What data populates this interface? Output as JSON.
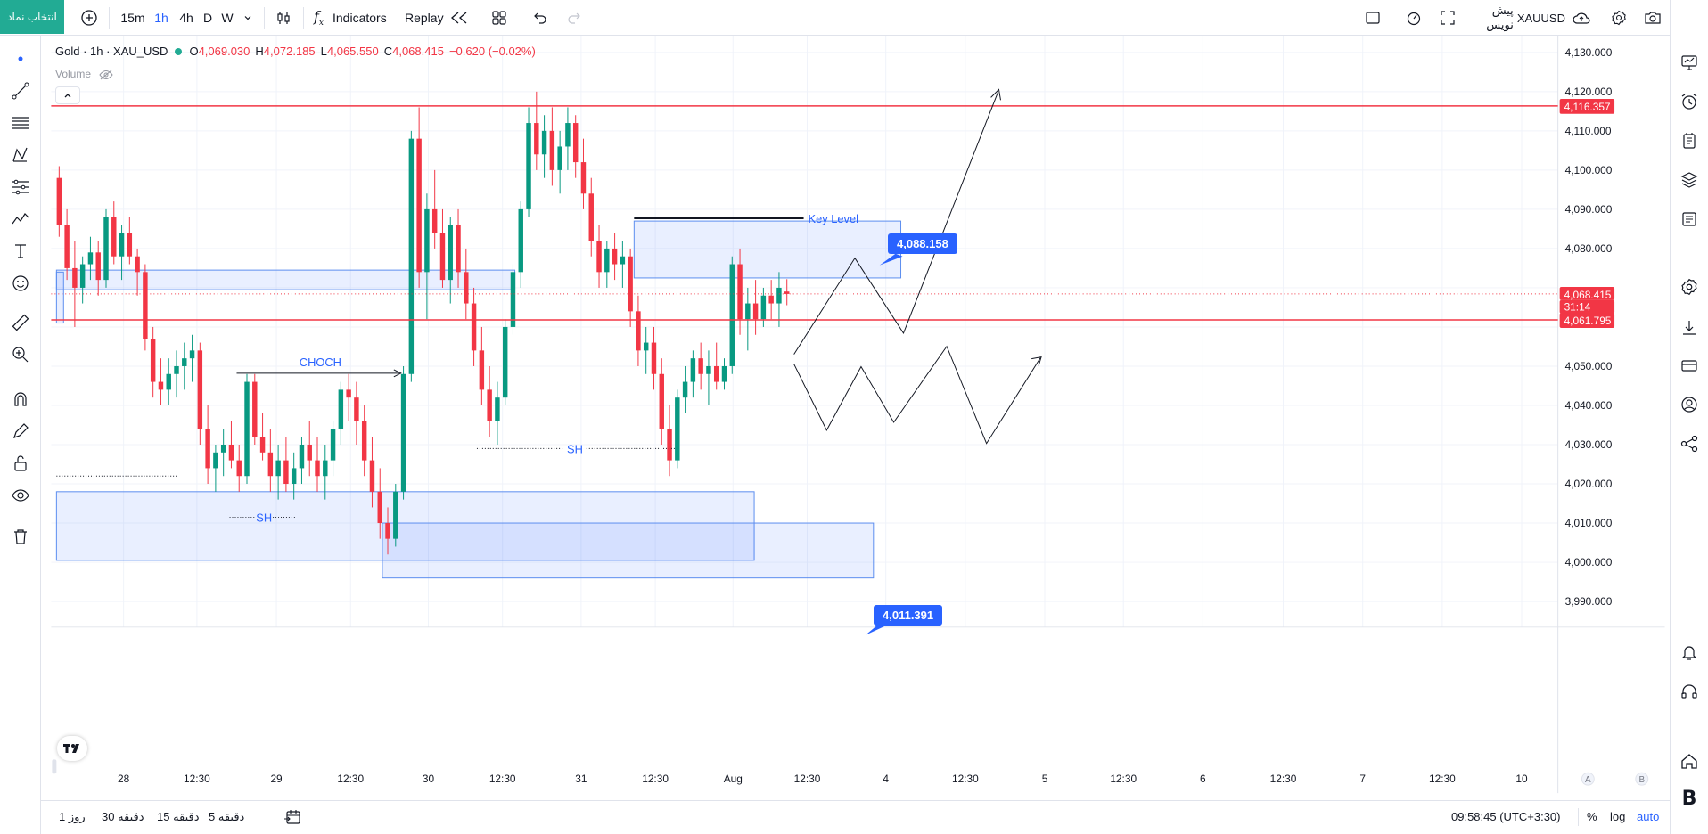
{
  "topbar": {
    "symbol_search": "انتخاب نماد",
    "intervals": [
      "15m",
      "1h",
      "4h",
      "D",
      "W"
    ],
    "active_interval": "1h",
    "indicators_label": "Indicators",
    "replay_label": "Replay",
    "symbol_name": "XAUUSD",
    "publish_label": "پیش نویس"
  },
  "legend": {
    "title": "Gold · 1h · XAU_USD",
    "open_label": "O",
    "open": "4,069.030",
    "high_label": "H",
    "high": "4,072.185",
    "low_label": "L",
    "low": "4,065.550",
    "close_label": "C",
    "close": "4,068.415",
    "change": "−0.620 (−0.02%)",
    "volume_label": "Volume"
  },
  "price_axis": {
    "ticks": [
      "4,130.000",
      "4,120.000",
      "4,110.000",
      "4,100.000",
      "4,090.000",
      "4,080.000",
      "4,070.000",
      "4,060.000",
      "4,050.000",
      "4,040.000",
      "4,030.000",
      "4,020.000",
      "4,010.000",
      "4,000.000",
      "3,990.000"
    ],
    "tag_resistance": "4,116.357",
    "tag_current": "4,068.415",
    "tag_countdown": "31:14",
    "tag_support": "4,061.795"
  },
  "time_axis": {
    "ticks": [
      "28",
      "12:30",
      "29",
      "12:30",
      "30",
      "12:30",
      "31",
      "12:30",
      "Aug",
      "12:30",
      "4",
      "12:30",
      "5",
      "12:30",
      "6",
      "12:30",
      "7",
      "12:30",
      "10"
    ]
  },
  "drawings": {
    "choch_label": "CHOCH",
    "sh_label_1": "SH",
    "sh_label_2": "SH",
    "key_level_label": "Key Level",
    "callout_upper": "4,088.158",
    "callout_lower": "4,011.391"
  },
  "bottombar": {
    "ranges": [
      "1 روز",
      "30 دقیقه",
      "15 دقیقه",
      "5 دقیقه"
    ],
    "clock": "09:58:45 (UTC+3:30)",
    "percent_label": "%",
    "log_label": "log",
    "auto_label": "auto"
  },
  "chart_data": {
    "type": "candlestick",
    "y_range": [
      3985,
      4135
    ],
    "resistance_level": 4116.357,
    "support_level": 4061.795,
    "current_price": 4068.415,
    "candles_ohlc": [
      [
        4098,
        4101,
        4083,
        4086
      ],
      [
        4086,
        4090,
        4072,
        4075
      ],
      [
        4075,
        4082,
        4060,
        4070
      ],
      [
        4070,
        4078,
        4066,
        4076
      ],
      [
        4076,
        4083,
        4072,
        4079
      ],
      [
        4079,
        4082,
        4068,
        4072
      ],
      [
        4072,
        4090,
        4070,
        4088
      ],
      [
        4088,
        4092,
        4076,
        4078
      ],
      [
        4078,
        4086,
        4072,
        4084
      ],
      [
        4084,
        4088,
        4076,
        4078
      ],
      [
        4078,
        4080,
        4068,
        4074
      ],
      [
        4074,
        4076,
        4054,
        4057
      ],
      [
        4057,
        4060,
        4042,
        4046
      ],
      [
        4046,
        4052,
        4040,
        4044
      ],
      [
        4044,
        4052,
        4040,
        4048
      ],
      [
        4048,
        4054,
        4042,
        4050
      ],
      [
        4050,
        4056,
        4044,
        4052
      ],
      [
        4052,
        4058,
        4046,
        4054
      ],
      [
        4054,
        4056,
        4030,
        4034
      ],
      [
        4034,
        4040,
        4020,
        4024
      ],
      [
        4024,
        4030,
        4018,
        4028
      ],
      [
        4028,
        4034,
        4022,
        4030
      ],
      [
        4030,
        4036,
        4024,
        4026
      ],
      [
        4026,
        4030,
        4018,
        4022
      ],
      [
        4022,
        4048,
        4020,
        4046
      ],
      [
        4046,
        4048,
        4030,
        4032
      ],
      [
        4032,
        4038,
        4026,
        4028
      ],
      [
        4028,
        4034,
        4018,
        4022
      ],
      [
        4022,
        4030,
        4016,
        4026
      ],
      [
        4026,
        4032,
        4018,
        4020
      ],
      [
        4020,
        4028,
        4016,
        4024
      ],
      [
        4024,
        4032,
        4020,
        4030
      ],
      [
        4030,
        4036,
        4022,
        4026
      ],
      [
        4026,
        4032,
        4018,
        4022
      ],
      [
        4022,
        4030,
        4016,
        4026
      ],
      [
        4026,
        4036,
        4022,
        4034
      ],
      [
        4034,
        4046,
        4030,
        4044
      ],
      [
        4044,
        4048,
        4036,
        4042
      ],
      [
        4042,
        4046,
        4030,
        4036
      ],
      [
        4036,
        4040,
        4022,
        4026
      ],
      [
        4026,
        4032,
        4014,
        4018
      ],
      [
        4018,
        4024,
        4006,
        4010
      ],
      [
        4010,
        4014,
        4002,
        4006
      ],
      [
        4006,
        4020,
        4004,
        4018
      ],
      [
        4018,
        4050,
        4016,
        4048
      ],
      [
        4048,
        4110,
        4046,
        4108
      ],
      [
        4108,
        4116,
        4070,
        4074
      ],
      [
        4074,
        4094,
        4062,
        4090
      ],
      [
        4090,
        4100,
        4080,
        4084
      ],
      [
        4084,
        4090,
        4070,
        4072
      ],
      [
        4072,
        4088,
        4066,
        4086
      ],
      [
        4086,
        4090,
        4070,
        4074
      ],
      [
        4074,
        4080,
        4062,
        4066
      ],
      [
        4066,
        4070,
        4050,
        4054
      ],
      [
        4054,
        4060,
        4040,
        4044
      ],
      [
        4044,
        4050,
        4032,
        4036
      ],
      [
        4036,
        4046,
        4030,
        4042
      ],
      [
        4042,
        4062,
        4040,
        4060
      ],
      [
        4060,
        4076,
        4058,
        4074
      ],
      [
        4074,
        4092,
        4070,
        4090
      ],
      [
        4090,
        4116,
        4088,
        4112
      ],
      [
        4112,
        4120,
        4100,
        4104
      ],
      [
        4104,
        4114,
        4098,
        4110
      ],
      [
        4110,
        4116,
        4096,
        4100
      ],
      [
        4100,
        4110,
        4094,
        4106
      ],
      [
        4106,
        4116,
        4100,
        4112
      ],
      [
        4112,
        4114,
        4098,
        4102
      ],
      [
        4102,
        4108,
        4090,
        4094
      ],
      [
        4094,
        4098,
        4078,
        4082
      ],
      [
        4082,
        4086,
        4070,
        4074
      ],
      [
        4074,
        4082,
        4070,
        4080
      ],
      [
        4080,
        4084,
        4072,
        4076
      ],
      [
        4076,
        4082,
        4070,
        4078
      ],
      [
        4078,
        4080,
        4060,
        4064
      ],
      [
        4064,
        4068,
        4050,
        4054
      ],
      [
        4054,
        4060,
        4048,
        4056
      ],
      [
        4056,
        4060,
        4044,
        4048
      ],
      [
        4048,
        4052,
        4030,
        4034
      ],
      [
        4034,
        4040,
        4022,
        4026
      ],
      [
        4026,
        4044,
        4024,
        4042
      ],
      [
        4042,
        4050,
        4038,
        4046
      ],
      [
        4046,
        4054,
        4042,
        4052
      ],
      [
        4052,
        4056,
        4044,
        4048
      ],
      [
        4048,
        4054,
        4040,
        4050
      ],
      [
        4050,
        4056,
        4044,
        4046
      ],
      [
        4046,
        4052,
        4044,
        4050
      ],
      [
        4050,
        4078,
        4048,
        4076
      ],
      [
        4076,
        4080,
        4058,
        4062
      ],
      [
        4062,
        4070,
        4054,
        4066
      ],
      [
        4066,
        4072,
        4058,
        4062
      ],
      [
        4062,
        4070,
        4060,
        4068
      ],
      [
        4068,
        4072,
        4062,
        4066
      ],
      [
        4066,
        4074,
        4060,
        4070
      ],
      [
        4069.03,
        4072.185,
        4065.55,
        4068.415
      ]
    ]
  }
}
